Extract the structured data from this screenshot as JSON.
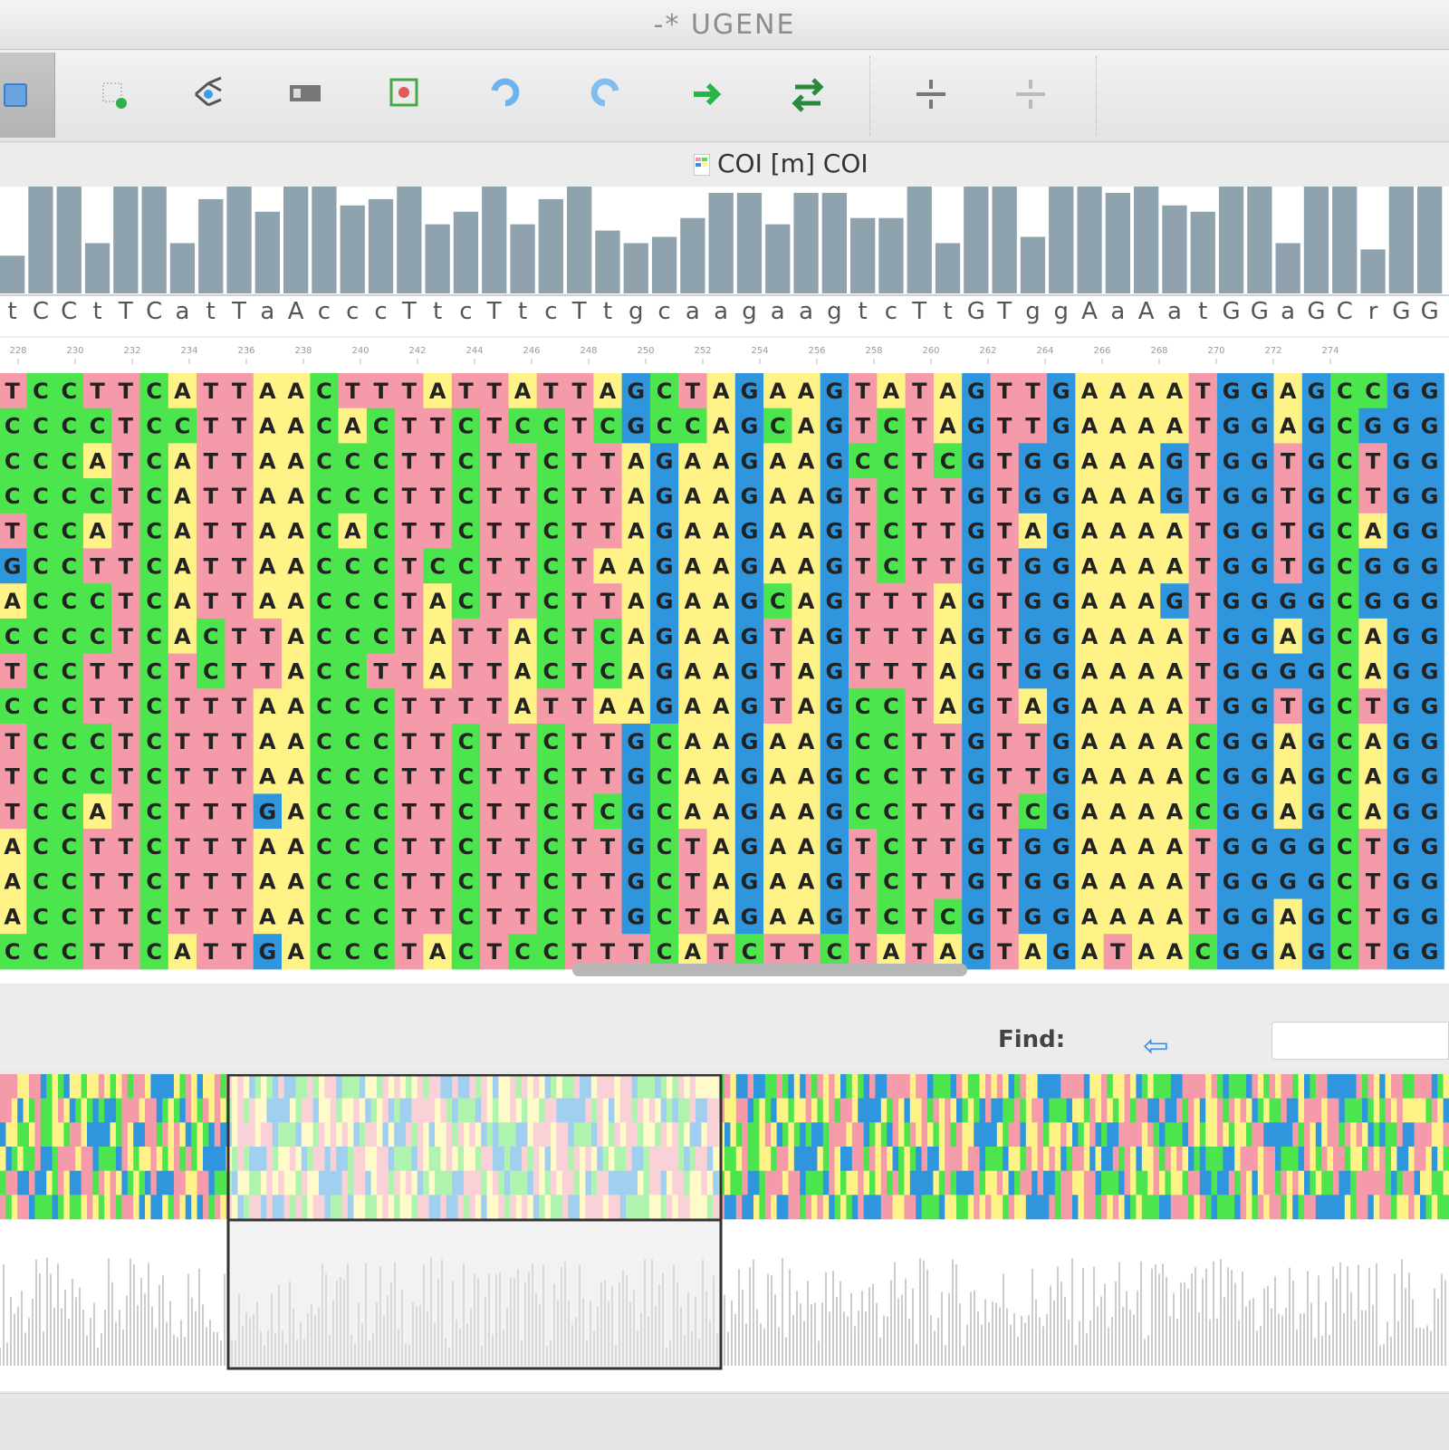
{
  "window": {
    "title": "-* UGENE"
  },
  "toolbar": {
    "buttons": [
      {
        "name": "align-action",
        "icon": "align-list-icon"
      },
      {
        "name": "add-sequence",
        "icon": "add-sequence-icon"
      },
      {
        "name": "build-tree",
        "icon": "tree-icon"
      },
      {
        "name": "statistics",
        "icon": "grid-icon"
      },
      {
        "name": "shift-region",
        "icon": "shift-icon"
      },
      {
        "name": "undo",
        "icon": "undo-icon"
      },
      {
        "name": "redo",
        "icon": "redo-icon"
      },
      {
        "name": "next",
        "icon": "green-arrow-icon"
      },
      {
        "name": "toggle-arrows",
        "icon": "swap-arrows-icon"
      },
      {
        "name": "zoom-in",
        "icon": "zoom-in-icon"
      },
      {
        "name": "zoom-out",
        "icon": "zoom-out-icon"
      }
    ]
  },
  "document": {
    "tab_label": "COI [m] COI",
    "consensus": "tCCtTCatTaAccc TtcTtcTtgcaagaagtcTtGTggAaAatGGaGCrGG",
    "ruler_ticks": [
      "228",
      "230",
      "232",
      "234",
      "236",
      "238",
      "240",
      "242",
      "244",
      "246",
      "248",
      "250",
      "252",
      "254",
      "256",
      "258",
      "260",
      "262",
      "264",
      "266",
      "268",
      "270",
      "272",
      "274"
    ],
    "rows": [
      "TCCTTCATTAACTTTATTATTAGCTAGAAGTATAGTTGAAAATGGAGCCGG",
      "CCCCTCCTTAACACTTCTCCTCGCCAGCAGTCTAGTTGAAAATGGAGCGGG",
      "CCCATCATTAACCCTTCTTCTTAGAAGAAGCCTCGTGGAAAGTGGTGCTGG",
      "CCCCTCATTAACCCTTCTTCTTAGAAGAAGTCTTGTGGAAAGTGGTGCTGG",
      "TCCATCATTAACACTTCTTCTTAGAAGAAGTCTTGTAGAAAATGGTGCAGG",
      "GCCTTCATTAACCCTCCTTCTAAGAAGAAGTCTTGTGGAAAATGGTGCGGG",
      "ACCCTCATTAACCCTACTTCTTAGAAGCAGTTTAGTGGAAAGTGGGGCGGG",
      "CCCCTCACTTACCCTATTACTCAGAAGTAGTTTAGTGGAAAATGGAGCAGG",
      "TCCTTCTCTTACCTTATTACTCAGAAGTAGTTTAGTGGAAAATGGGGCAGG",
      "CCCTTCTTTAACCCTTTTATTAAGAAGTAGCCTAGTAGAAAATGGTGCTGG",
      "TCCCTCTTTAACCCTTCTTCTTGCAAGAAGCCTTGTTGAAAACGGAGCAGG",
      "TCCCTCTTTAACCCTTCTTCTTGCAAGAAGCCTTGTTGAAAACGGAGCAGG",
      "TCCATCTTTGACCCTTCTTCTCGCAAGAAGCCTTGTCGAAAACGGAGCAGG",
      "ACCTTCTTTAACCCTTCTTCTTGCTAGAAGTCTTGTGGAAAATGGGGCTGG",
      "ACCTTCTTTAACCCTTCTTCTTGCTAGAAGTCTTGTGGAAAATGGGGCTGG",
      "ACCTTCTTTAACCCTTCTTCTTGCTAGAAGTCTCGTGGAAAATGGAGCTGG",
      "CCCTTCATTGACCCTACTCCTTTCATCTTCTATAGTAGATAACGGAGCTGG"
    ]
  },
  "find": {
    "label": "Find:",
    "placeholder": ""
  },
  "colors": {
    "A": "#fff388",
    "C": "#4de54d",
    "G": "#2f96de",
    "T": "#f59aa8",
    "histogram": "#8ea3ad"
  }
}
